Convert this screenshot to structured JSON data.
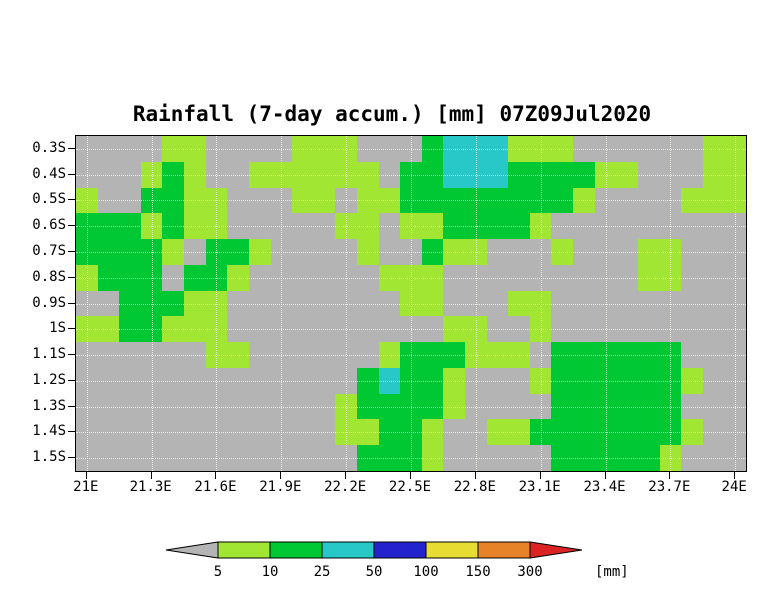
{
  "chart_data": {
    "type": "heatmap",
    "title": "Rainfall (7-day accum.) [mm] 07Z09Jul2020",
    "units": "mm",
    "x_axis": {
      "labels": [
        "21E",
        "21.3E",
        "21.6E",
        "21.9E",
        "22.2E",
        "22.5E",
        "22.8E",
        "23.1E",
        "23.4E",
        "23.7E",
        "24E"
      ],
      "lon_label_start": 21.0,
      "lon_label_step": 0.3,
      "lon_range": [
        20.95,
        24.05
      ]
    },
    "y_axis": {
      "labels": [
        "0.3S",
        "0.4S",
        "0.5S",
        "0.6S",
        "0.7S",
        "0.8S",
        "0.9S",
        "1S",
        "1.1S",
        "1.2S",
        "1.3S",
        "1.4S",
        "1.5S"
      ],
      "lat_label_start_south": 0.3,
      "lat_label_step": 0.1,
      "lat_range_south": [
        0.25,
        1.55
      ]
    },
    "levels_mm": [
      5,
      10,
      25,
      50,
      100,
      150,
      300
    ],
    "palette": {
      ".": "#b4b4b4",
      "a": "#a0e632",
      "b": "#00c832",
      "c": "#28c8c8"
    },
    "palette_meaning": {
      ".": "below 5 mm",
      "a": "5-10 mm",
      "b": "10-25 mm",
      "c": "25-50 mm"
    },
    "grid": {
      "ncols": 31,
      "nrows": 13,
      "lon_cell_centers": "21.0E to 24.0E step 0.1",
      "lat_cell_centers": "0.3S to 1.5S step 0.1",
      "cells": [
        "....aa....aaa...bcccaaa......aa",
        "...aba..aaaaaa.bbcccbbbbaa...aa",
        "a..bbaa...aa.aabbbbbbbba....aaa",
        "bbbabaa.....aa.aabbbba.........",
        "bbbba.bba....a..baa...a...aa...",
        "abbb.bba......aaa.........aa...",
        "..bbbaa........aa...aa.........",
        "aabbaaa..........aa..a.........",
        "......aa......abbbaaa.bbbbbb...",
        ".............bcbba...abbbbbba..",
        "............abbbba....bbbbbb...",
        "............aabba..aabbbbbbba..",
        ".............bbba.....bbbbba..."
      ]
    },
    "legend": {
      "labels": [
        "5",
        "10",
        "25",
        "50",
        "100",
        "150",
        "300"
      ],
      "unit_label": "[mm]",
      "colors": [
        "#b4b4b4",
        "#a0e632",
        "#00c832",
        "#28c8c8",
        "#2323cd",
        "#e6dc32",
        "#e68228",
        "#dc2323"
      ]
    }
  }
}
